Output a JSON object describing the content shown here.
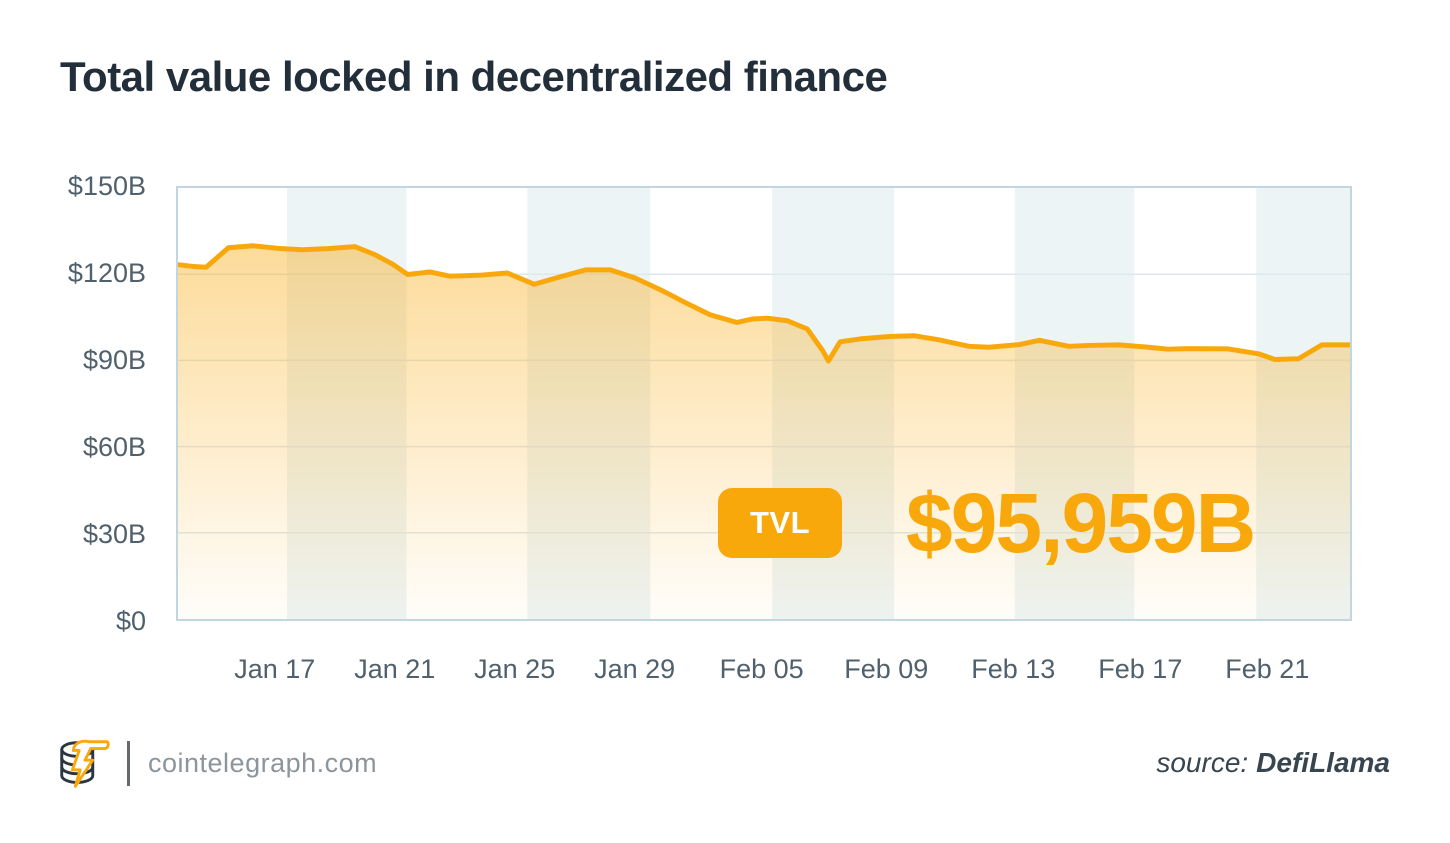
{
  "title": "Total value locked in decentralized finance",
  "tooltip": {
    "badge": "TVL",
    "value": "$95,959B"
  },
  "footer": {
    "site": "cointelegraph.com",
    "source_label": "source:",
    "source_name": "DefiLlama",
    "logo_icon": "cointelegraph-coin-lightning-logo"
  },
  "colors": {
    "accent": "#f9a80b",
    "band": "#edf4f5",
    "plot_border": "#c2d6df",
    "grid": "#dde8ec",
    "axis_text": "#50616d",
    "title_text": "#222f3a",
    "site_text": "#8c959c",
    "source_text": "#36454f",
    "logo_dark": "#2b3740"
  },
  "chart_data": {
    "type": "area",
    "title": "Total value locked in decentralized finance",
    "unit": "USD billions (TVL in DeFi)",
    "legend": "none",
    "grid": "horizontal",
    "ylim": [
      0,
      150
    ],
    "y_ticks": [
      "$150B",
      "$120B",
      "$90B",
      "$60B",
      "$30B",
      "$0"
    ],
    "y_values": [
      150,
      120,
      90,
      60,
      30,
      0
    ],
    "x_ticks": [
      {
        "label": "Jan 17",
        "pos": 0.084
      },
      {
        "label": "Jan 21",
        "pos": 0.186
      },
      {
        "label": "Jan 25",
        "pos": 0.288
      },
      {
        "label": "Jan 29",
        "pos": 0.39
      },
      {
        "label": "Feb 05",
        "pos": 0.498
      },
      {
        "label": "Feb 09",
        "pos": 0.604
      },
      {
        "label": "Feb 13",
        "pos": 0.712
      },
      {
        "label": "Feb 17",
        "pos": 0.82
      },
      {
        "label": "Feb 21",
        "pos": 0.928
      }
    ],
    "bands": [
      0,
      0.093,
      0.195,
      0.298,
      0.403,
      0.507,
      0.611,
      0.714,
      0.816,
      0.92,
      1
    ],
    "band_note": "alternating white/pale-teal vertical stripes, first stripe white",
    "x_note": "points are [fraction of x-range 0-1, value in $B], Jan 14 - Feb 23 span",
    "series": [
      {
        "name": "TVL",
        "points": [
          [
            0.0,
            123.3
          ],
          [
            0.013,
            122.7
          ],
          [
            0.024,
            122.4
          ],
          [
            0.043,
            129.2
          ],
          [
            0.064,
            129.9
          ],
          [
            0.085,
            129.0
          ],
          [
            0.106,
            128.5
          ],
          [
            0.128,
            128.9
          ],
          [
            0.151,
            129.6
          ],
          [
            0.168,
            126.8
          ],
          [
            0.183,
            123.5
          ],
          [
            0.196,
            119.9
          ],
          [
            0.215,
            120.8
          ],
          [
            0.232,
            119.3
          ],
          [
            0.259,
            119.7
          ],
          [
            0.281,
            120.4
          ],
          [
            0.304,
            116.5
          ],
          [
            0.327,
            119.2
          ],
          [
            0.348,
            121.5
          ],
          [
            0.369,
            121.5
          ],
          [
            0.39,
            118.7
          ],
          [
            0.414,
            114.1
          ],
          [
            0.433,
            110.1
          ],
          [
            0.454,
            105.9
          ],
          [
            0.477,
            103.2
          ],
          [
            0.49,
            104.4
          ],
          [
            0.503,
            104.7
          ],
          [
            0.52,
            103.8
          ],
          [
            0.537,
            100.9
          ],
          [
            0.55,
            93.4
          ],
          [
            0.555,
            89.8
          ],
          [
            0.565,
            96.5
          ],
          [
            0.582,
            97.5
          ],
          [
            0.607,
            98.3
          ],
          [
            0.628,
            98.6
          ],
          [
            0.65,
            97.1
          ],
          [
            0.675,
            94.9
          ],
          [
            0.692,
            94.6
          ],
          [
            0.718,
            95.5
          ],
          [
            0.735,
            97.0
          ],
          [
            0.76,
            94.9
          ],
          [
            0.777,
            95.2
          ],
          [
            0.803,
            95.4
          ],
          [
            0.828,
            94.6
          ],
          [
            0.845,
            93.9
          ],
          [
            0.862,
            94.1
          ],
          [
            0.896,
            94.0
          ],
          [
            0.922,
            92.3
          ],
          [
            0.936,
            90.3
          ],
          [
            0.956,
            90.6
          ],
          [
            0.976,
            95.4
          ],
          [
            1.0,
            95.4
          ]
        ]
      }
    ]
  }
}
